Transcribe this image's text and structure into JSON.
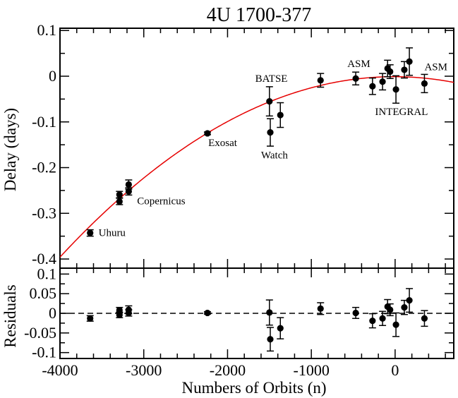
{
  "chart_data": {
    "type": "scatter",
    "title": "4U 1700-377",
    "xlabel": "Numbers of Orbits (n)",
    "xlim": [
      -4000,
      700
    ],
    "x_ticks": [
      -4000,
      -3000,
      -2000,
      -1000,
      0
    ],
    "x_tick_labels": [
      "-4000",
      "-3000",
      "-2000",
      "-1000",
      "0"
    ],
    "top_panel": {
      "ylabel": "Delay (days)",
      "ylim": [
        -0.42,
        0.105
      ],
      "y_ticks": [
        -0.4,
        -0.3,
        -0.2,
        -0.1,
        0,
        0.1
      ],
      "y_tick_labels": [
        "-0.4",
        "-0.3",
        "-0.2",
        "-0.1",
        "0",
        "0.1"
      ],
      "fit_curve": {
        "color": "#e60000",
        "description": "quadratic fit",
        "vertex_x": -10,
        "vertex_y": -0.001,
        "curvature": -2.48e-08
      },
      "points": [
        {
          "x": -3640,
          "y": -0.343,
          "err": 0.007
        },
        {
          "x": -3290,
          "y": -0.259,
          "err": 0.007
        },
        {
          "x": -3290,
          "y": -0.274,
          "err": 0.007
        },
        {
          "x": -3180,
          "y": -0.237,
          "err": 0.01
        },
        {
          "x": -3180,
          "y": -0.252,
          "err": 0.008
        },
        {
          "x": -2240,
          "y": -0.125,
          "err": 0.003
        },
        {
          "x": -1500,
          "y": -0.055,
          "err": 0.032
        },
        {
          "x": -1490,
          "y": -0.123,
          "err": 0.03
        },
        {
          "x": -1370,
          "y": -0.085,
          "err": 0.027
        },
        {
          "x": -890,
          "y": -0.009,
          "err": 0.015
        },
        {
          "x": -470,
          "y": -0.005,
          "err": 0.014
        },
        {
          "x": -270,
          "y": -0.022,
          "err": 0.018
        },
        {
          "x": -150,
          "y": -0.012,
          "err": 0.018
        },
        {
          "x": -90,
          "y": 0.017,
          "err": 0.018
        },
        {
          "x": -60,
          "y": 0.01,
          "err": 0.015
        },
        {
          "x": 10,
          "y": -0.029,
          "err": 0.03
        },
        {
          "x": 110,
          "y": 0.014,
          "err": 0.018
        },
        {
          "x": 170,
          "y": 0.032,
          "err": 0.03
        },
        {
          "x": 350,
          "y": -0.016,
          "err": 0.02
        }
      ],
      "annotations": [
        {
          "text": "Uhuru",
          "x": -3540,
          "y": -0.35
        },
        {
          "text": "Copernicus",
          "x": -3080,
          "y": -0.28
        },
        {
          "text": "Exosat",
          "x": -2230,
          "y": -0.153
        },
        {
          "text": "Watch",
          "x": -1600,
          "y": -0.18
        },
        {
          "text": "BATSE",
          "x": -1670,
          "y": -0.012
        },
        {
          "text": "ASM",
          "x": -570,
          "y": 0.02
        },
        {
          "text": "ASM",
          "x": 350,
          "y": 0.013
        },
        {
          "text": "INTEGRAL",
          "x": -240,
          "y": -0.085
        }
      ]
    },
    "bottom_panel": {
      "ylabel": "Residuals",
      "ylim": [
        -0.115,
        0.115
      ],
      "y_ticks": [
        -0.1,
        -0.05,
        0,
        0.05,
        0.1
      ],
      "y_tick_labels": [
        "-0.1",
        "-0.05",
        "0",
        "0.05",
        "0.1"
      ],
      "zero_line": "dashed",
      "points": [
        {
          "x": -3640,
          "y": -0.013,
          "err": 0.007
        },
        {
          "x": -3290,
          "y": 0.008,
          "err": 0.007
        },
        {
          "x": -3290,
          "y": -0.004,
          "err": 0.007
        },
        {
          "x": -3180,
          "y": 0.009,
          "err": 0.01
        },
        {
          "x": -3180,
          "y": 0.001,
          "err": 0.008
        },
        {
          "x": -2240,
          "y": 0.001,
          "err": 0.003
        },
        {
          "x": -1500,
          "y": 0.002,
          "err": 0.032
        },
        {
          "x": -1490,
          "y": -0.066,
          "err": 0.03
        },
        {
          "x": -1370,
          "y": -0.038,
          "err": 0.027
        },
        {
          "x": -890,
          "y": 0.012,
          "err": 0.015
        },
        {
          "x": -470,
          "y": 0.001,
          "err": 0.014
        },
        {
          "x": -270,
          "y": -0.019,
          "err": 0.018
        },
        {
          "x": -150,
          "y": -0.013,
          "err": 0.018
        },
        {
          "x": -90,
          "y": 0.017,
          "err": 0.018
        },
        {
          "x": -60,
          "y": 0.009,
          "err": 0.015
        },
        {
          "x": 10,
          "y": -0.029,
          "err": 0.03
        },
        {
          "x": 110,
          "y": 0.015,
          "err": 0.018
        },
        {
          "x": 170,
          "y": 0.033,
          "err": 0.03
        },
        {
          "x": 350,
          "y": -0.013,
          "err": 0.02
        }
      ]
    }
  }
}
